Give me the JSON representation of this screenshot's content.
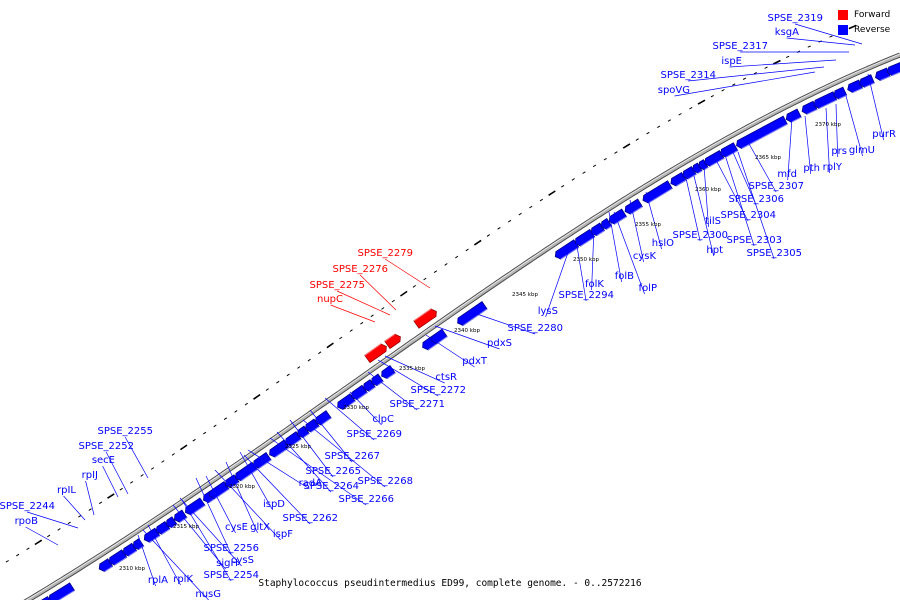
{
  "caption": "Staphylococcus pseudintermedius ED99, complete genome. - 0..2572216",
  "legend": [
    {
      "label": "Forward",
      "color": "#ff0000"
    },
    {
      "label": "Reverse",
      "color": "#0000ff"
    }
  ],
  "colors": {
    "forward": "#ff0000",
    "reverse": "#0000ff",
    "backbone": "#999999",
    "ticks": "#000000"
  },
  "kbp_labels": [
    "2310 kbp",
    "2315 kbp",
    "2320 kbp",
    "2325 kbp",
    "2330 kbp",
    "2335 kbp",
    "2340 kbp",
    "2345 kbp",
    "2350 kbp",
    "2355 kbp",
    "2360 kbp",
    "2365 kbp",
    "2370 kbp"
  ],
  "gene_labels": [
    {
      "text": "SPSE_2319",
      "strand": "reverse"
    },
    {
      "text": "ksgA",
      "strand": "reverse"
    },
    {
      "text": "SPSE_2317",
      "strand": "reverse"
    },
    {
      "text": "ispE",
      "strand": "reverse"
    },
    {
      "text": "SPSE_2314",
      "strand": "reverse"
    },
    {
      "text": "spoVG",
      "strand": "reverse"
    },
    {
      "text": "purR",
      "strand": "reverse"
    },
    {
      "text": "glmU",
      "strand": "reverse"
    },
    {
      "text": "prs",
      "strand": "reverse"
    },
    {
      "text": "rplY",
      "strand": "reverse"
    },
    {
      "text": "pth",
      "strand": "reverse"
    },
    {
      "text": "mfd",
      "strand": "reverse"
    },
    {
      "text": "SPSE_2307",
      "strand": "reverse"
    },
    {
      "text": "SPSE_2306",
      "strand": "reverse"
    },
    {
      "text": "SPSE_2304",
      "strand": "reverse"
    },
    {
      "text": "SPSE_2303",
      "strand": "reverse"
    },
    {
      "text": "SPSE_2305",
      "strand": "reverse"
    },
    {
      "text": "tilS",
      "strand": "reverse"
    },
    {
      "text": "SPSE_2300",
      "strand": "reverse"
    },
    {
      "text": "hpt",
      "strand": "reverse"
    },
    {
      "text": "hslO",
      "strand": "reverse"
    },
    {
      "text": "cysK",
      "strand": "reverse"
    },
    {
      "text": "folB",
      "strand": "reverse"
    },
    {
      "text": "folP",
      "strand": "reverse"
    },
    {
      "text": "folK",
      "strand": "reverse"
    },
    {
      "text": "SPSE_2294",
      "strand": "reverse"
    },
    {
      "text": "lysS",
      "strand": "reverse"
    },
    {
      "text": "SPSE_2279",
      "strand": "forward"
    },
    {
      "text": "SPSE_2276",
      "strand": "forward"
    },
    {
      "text": "SPSE_2275",
      "strand": "forward"
    },
    {
      "text": "nupC",
      "strand": "forward"
    },
    {
      "text": "SPSE_2280",
      "strand": "reverse"
    },
    {
      "text": "pdxS",
      "strand": "reverse"
    },
    {
      "text": "pdxT",
      "strand": "reverse"
    },
    {
      "text": "ctsR",
      "strand": "reverse"
    },
    {
      "text": "SPSE_2272",
      "strand": "reverse"
    },
    {
      "text": "SPSE_2271",
      "strand": "reverse"
    },
    {
      "text": "clpC",
      "strand": "reverse"
    },
    {
      "text": "SPSE_2269",
      "strand": "reverse"
    },
    {
      "text": "SPSE_2267",
      "strand": "reverse"
    },
    {
      "text": "SPSE_2265",
      "strand": "reverse"
    },
    {
      "text": "SPSE_2268",
      "strand": "reverse"
    },
    {
      "text": "SPSE_2264",
      "strand": "reverse"
    },
    {
      "text": "SPSE_2266",
      "strand": "reverse"
    },
    {
      "text": "radA",
      "strand": "reverse"
    },
    {
      "text": "ispD",
      "strand": "reverse"
    },
    {
      "text": "SPSE_2262",
      "strand": "reverse"
    },
    {
      "text": "gltX",
      "strand": "reverse"
    },
    {
      "text": "ispF",
      "strand": "reverse"
    },
    {
      "text": "cysE",
      "strand": "reverse"
    },
    {
      "text": "SPSE_2256",
      "strand": "reverse"
    },
    {
      "text": "cysS",
      "strand": "reverse"
    },
    {
      "text": "sigH",
      "strand": "reverse"
    },
    {
      "text": "SPSE_2254",
      "strand": "reverse"
    },
    {
      "text": "rplK",
      "strand": "reverse"
    },
    {
      "text": "rplA",
      "strand": "reverse"
    },
    {
      "text": "nusG",
      "strand": "reverse"
    },
    {
      "text": "SPSE_2255",
      "strand": "reverse"
    },
    {
      "text": "SPSE_2252",
      "strand": "reverse"
    },
    {
      "text": "secE",
      "strand": "reverse"
    },
    {
      "text": "rpIJ",
      "strand": "reverse"
    },
    {
      "text": "rpIL",
      "strand": "reverse"
    },
    {
      "text": "SPSE_2244",
      "strand": "reverse"
    },
    {
      "text": "rpoB",
      "strand": "reverse"
    }
  ]
}
